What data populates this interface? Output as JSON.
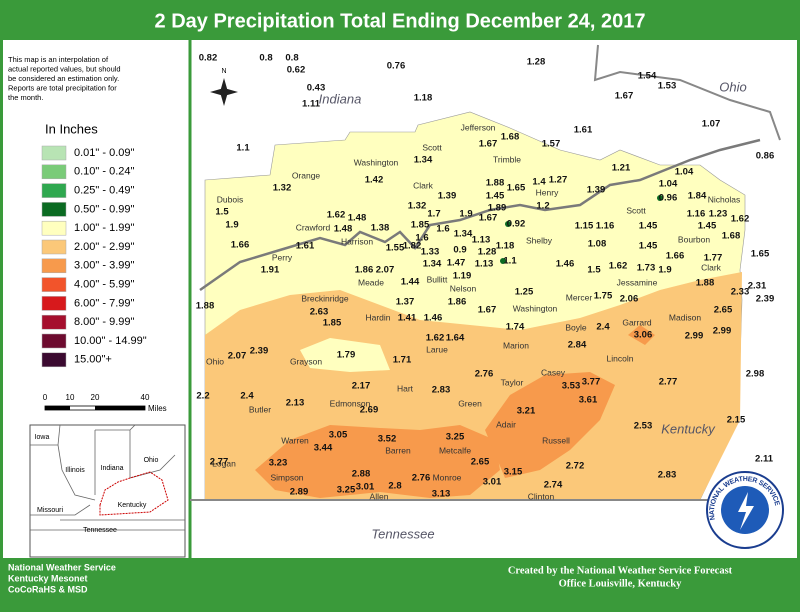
{
  "header": {
    "title": "2 Day Precipitation Total Ending December 24, 2017"
  },
  "note": [
    "This map is an interpolation of",
    "actual reported values, but should",
    "be considered an estimation only.",
    "Reports are total precipitation for",
    "the month."
  ],
  "legend": {
    "title": "In Inches",
    "items": [
      {
        "label": "0.01\" - 0.09\"",
        "color": "#b8e4b4"
      },
      {
        "label": "0.10\" - 0.24\"",
        "color": "#7acb78"
      },
      {
        "label": "0.25\" - 0.49\"",
        "color": "#2fa84f"
      },
      {
        "label": "0.50\" - 0.99\"",
        "color": "#0b6b22"
      },
      {
        "label": "1.00\" - 1.99\"",
        "color": "#ffffbf"
      },
      {
        "label": "2.00\" - 2.99\"",
        "color": "#fbc879"
      },
      {
        "label": "3.00\" - 3.99\"",
        "color": "#f79a4c"
      },
      {
        "label": "4.00\" - 5.99\"",
        "color": "#f2542b"
      },
      {
        "label": "6.00\" - 7.99\"",
        "color": "#d7191c"
      },
      {
        "label": "8.00\" - 9.99\"",
        "color": "#a50f2d"
      },
      {
        "label": "10.00\" - 14.99\"",
        "color": "#6d0b2f"
      },
      {
        "label": "15.00\"+",
        "color": "#3b0a30"
      }
    ]
  },
  "scale": {
    "ticks": [
      "0",
      "10",
      "20",
      "40"
    ],
    "unit": "Miles"
  },
  "compass": "N",
  "states": [
    "Indiana",
    "Ohio",
    "Kentucky",
    "Tennessee"
  ],
  "counties": [
    "Jefferson",
    "Scott",
    "Trimble",
    "Washington",
    "Orange",
    "Clark",
    "Henry",
    "Dubois",
    "Scott",
    "Nicholas",
    "Crawford",
    "Harrison",
    "Shelby",
    "Bourbon",
    "Perry",
    "Meade",
    "Bullitt",
    "Clark",
    "Jessamine",
    "Nelson",
    "Washington",
    "Mercer",
    "Breckinridge",
    "Hardin",
    "Larue",
    "Marion",
    "Boyle",
    "Garrard",
    "Madison",
    "Ohio",
    "Grayson",
    "Lincoln",
    "Taylor",
    "Casey",
    "Hart",
    "Edmonson",
    "Green",
    "Butler",
    "Adair",
    "Warren",
    "Barren",
    "Metcalfe",
    "Russell",
    "Logan",
    "Simpson",
    "Allen",
    "Monroe",
    "Clinton"
  ],
  "values": [
    "0.82",
    "0.8",
    "0.8",
    "0.62",
    "0.76",
    "1.28",
    "0.43",
    "1.11",
    "1.18",
    "1.54",
    "1.53",
    "1.67",
    "1.07",
    "0.86",
    "1.61",
    "1.57",
    "1.68",
    "1.67",
    "1.1",
    "1.34",
    "1.42",
    "1.32",
    "1.39",
    "1.39",
    "1.21",
    "1.04",
    "1.04",
    "0.96",
    "1.84",
    "1.88",
    "1.65",
    "1.45",
    "1.4",
    "1.27",
    "1.89",
    "1.2",
    "1.5",
    "1.9",
    "1.62",
    "1.48",
    "1.38",
    "1.32",
    "1.7",
    "1.9",
    "1.67",
    "0.92",
    "1.16",
    "1.23",
    "1.62",
    "1.45",
    "1.68",
    "1.15",
    "1.16",
    "1.45",
    "1.66",
    "1.48",
    "1.61",
    "1.55",
    "1.82",
    "1.85",
    "1.6",
    "1.34",
    "1.6",
    "1.33",
    "0.9",
    "1.13",
    "1.18",
    "1.28",
    "1.1",
    "1.13",
    "1.47",
    "1.34",
    "1.19",
    "1.46",
    "1.08",
    "1.5",
    "1.45",
    "1.62",
    "1.73",
    "1.9",
    "1.66",
    "1.77",
    "1.65",
    "1.91",
    "1.86",
    "2.07",
    "1.44",
    "1.88",
    "1.37",
    "1.86",
    "1.25",
    "1.75",
    "2.06",
    "1.88",
    "2.31",
    "2.33",
    "2.39",
    "1.67",
    "1.41",
    "1.46",
    "2.63",
    "1.85",
    "1.74",
    "2.4",
    "3.06",
    "2.65",
    "2.99",
    "2.99",
    "1.62",
    "1.64",
    "2.84",
    "2.07",
    "2.39",
    "1.79",
    "1.71",
    "2.76",
    "2.98",
    "2.77",
    "3.53",
    "3.77",
    "3.61",
    "2.17",
    "2.83",
    "2.2",
    "2.4",
    "2.13",
    "2.69",
    "3.21",
    "3.05",
    "3.52",
    "3.25",
    "3.44",
    "2.53",
    "2.15",
    "2.11",
    "2.77",
    "3.23",
    "2.65",
    "3.15",
    "2.72",
    "2.88",
    "2.76",
    "3.01",
    "2.8",
    "3.01",
    "2.83",
    "2.74",
    "2.89",
    "3.25",
    "3.13"
  ],
  "inset": [
    "Iowa",
    "Illinois",
    "Indiana",
    "Ohio",
    "Missouri",
    "Kentucky",
    "Tennessee"
  ],
  "logo": "NATIONAL WEATHER SERVICE",
  "footer": {
    "left": [
      "National Weather Service",
      "Kentucky Mesonet",
      "CoCoRaHS & MSD"
    ],
    "right": [
      "Created by the National Weather Service Forecast",
      "Office Louisville, Kentucky"
    ]
  }
}
